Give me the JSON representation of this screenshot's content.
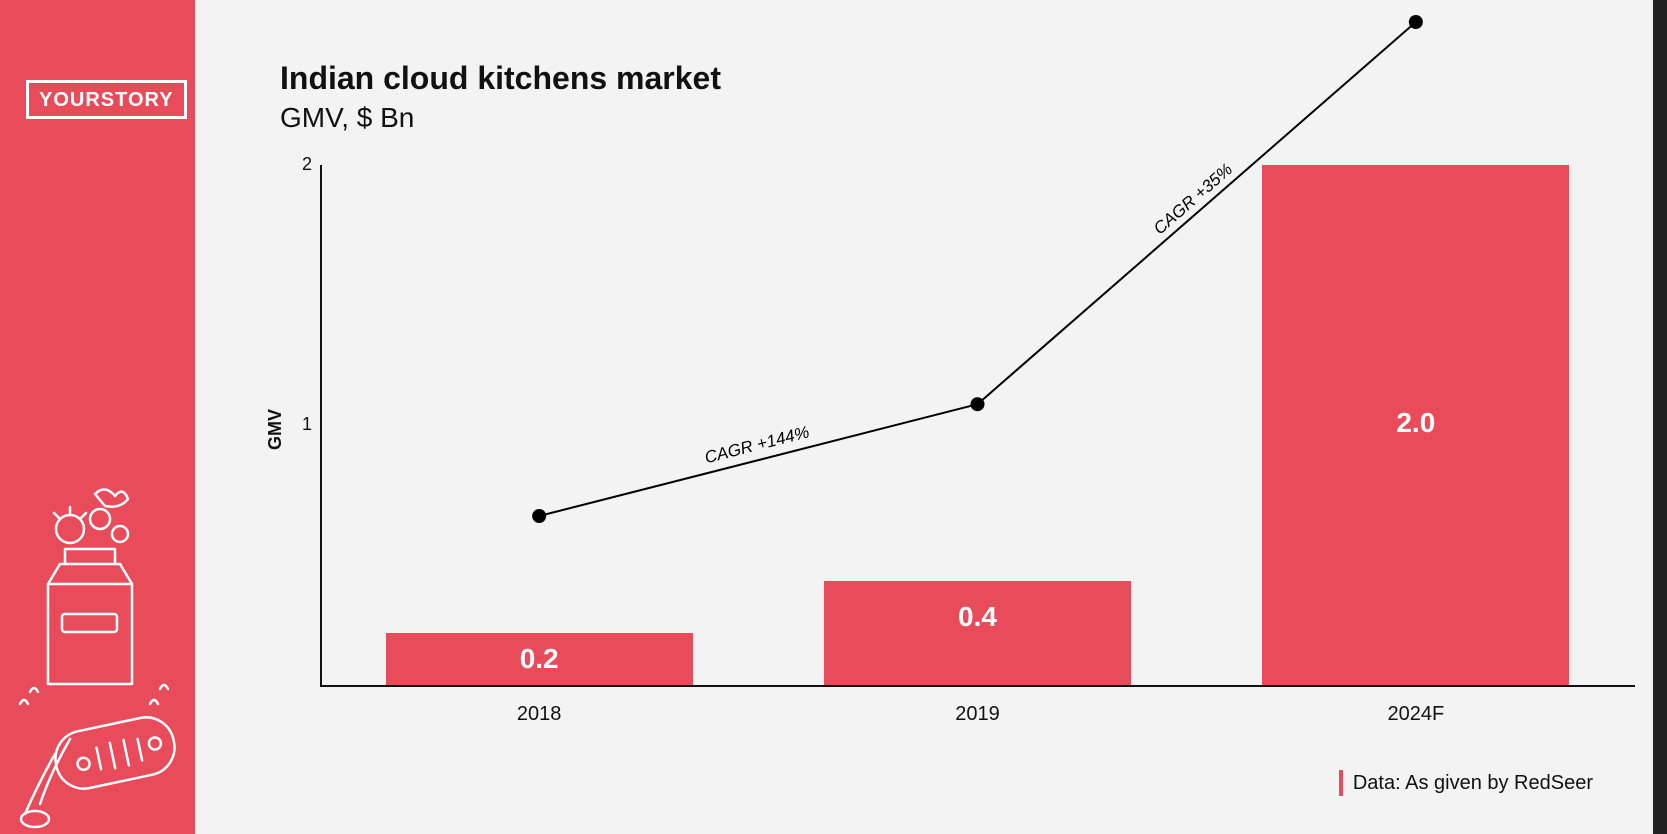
{
  "brand": {
    "logo": "YOURSTORY"
  },
  "header": {
    "title": "Indian cloud kitchens market",
    "subtitle": "GMV, $ Bn"
  },
  "chart": {
    "type": "bar+line",
    "ylabel": "GMV",
    "ylim": [
      0,
      2
    ],
    "yticks": [
      1,
      2
    ],
    "categories": [
      "2018",
      "2019",
      "2024F"
    ],
    "bar_values": [
      0.2,
      0.4,
      2.0
    ],
    "bar_labels": [
      "0.2",
      "0.4",
      "2.0"
    ],
    "bar_color": "#e84b5a",
    "line_points": [
      0.65,
      1.08,
      2.55
    ],
    "segment_labels": [
      "CAGR +144%",
      "CAGR +35%"
    ],
    "background_color": "#f4f3f3",
    "axis_color": "#111111",
    "bar_label_color": "#ffffff",
    "bar_label_fontsize": 28,
    "title_fontsize": 32,
    "subtitle_fontsize": 28,
    "bar_width_ratio": 0.7
  },
  "credit": "Data: As given by RedSeer",
  "colors": {
    "brand_red": "#e84b5a",
    "bg": "#f4f3f3",
    "text": "#111111",
    "white": "#ffffff",
    "dark": "#222222"
  }
}
